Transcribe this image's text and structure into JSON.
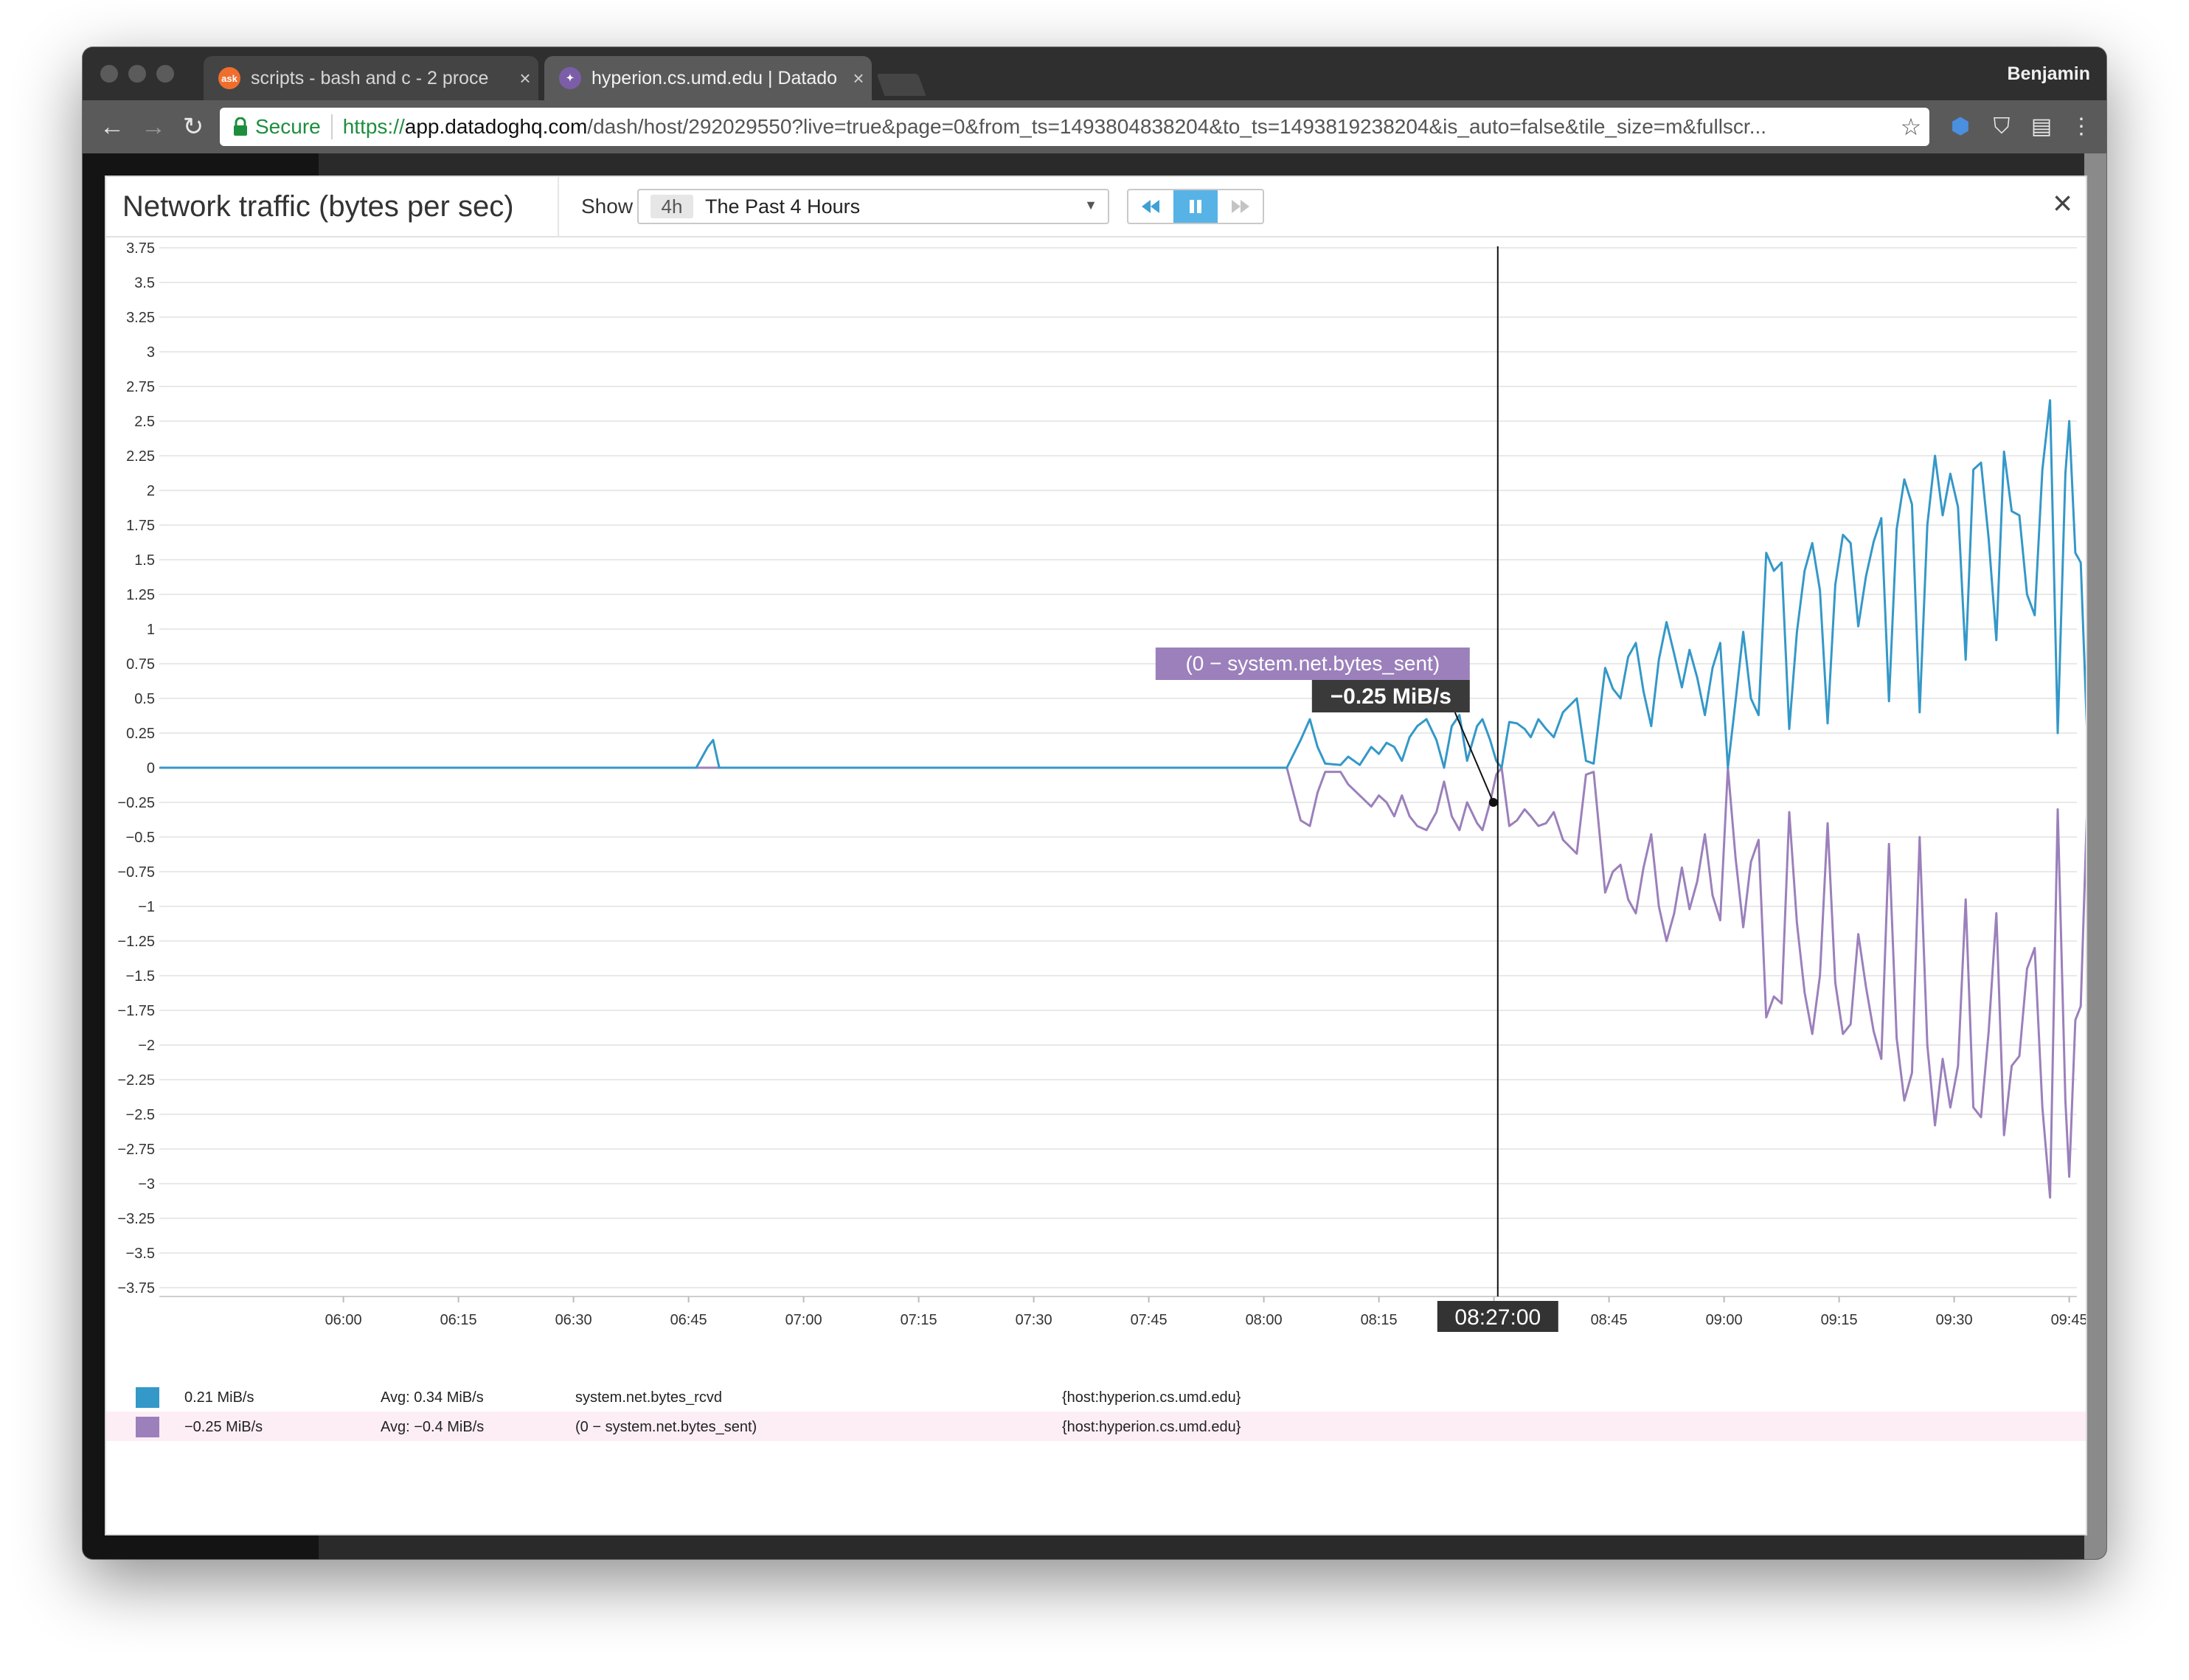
{
  "browser": {
    "tabs": [
      {
        "label": "scripts - bash and c - 2 proce",
        "favicon_text": "ask",
        "favicon_color": "#ef6e2e",
        "active": false
      },
      {
        "label": "hyperion.cs.umd.edu | Datado",
        "favicon_color": "#7b5ea7",
        "active": true
      }
    ],
    "profile_name": "Benjamin",
    "url_secure_label": "Secure",
    "url_scheme": "https://",
    "url_domain": "app.datadoghq.com",
    "url_path": "/dash/host/292029550?live=true&page=0&from_ts=1493804838204&to_ts=1493819238204&is_auto=false&tile_size=m&fullscr..."
  },
  "modal": {
    "title": "Network traffic (bytes per sec)",
    "show_label": "Show",
    "timeframe_abbr": "4h",
    "timeframe_label": "The Past 4 Hours",
    "close_label": "×"
  },
  "chart_data": {
    "type": "line",
    "title": "Network traffic (bytes per sec)",
    "ylim": [
      -3.75,
      3.75
    ],
    "yticks": [
      "3.75",
      "3.5",
      "3.25",
      "3",
      "2.75",
      "2.5",
      "2.25",
      "2",
      "1.75",
      "1.5",
      "1.25",
      "1",
      "0.75",
      "0.5",
      "0.25",
      "0",
      "−0.25",
      "−0.5",
      "−0.75",
      "−1",
      "−1.25",
      "−1.5",
      "−1.75",
      "−2",
      "−2.25",
      "−2.5",
      "−2.75",
      "−3",
      "−3.25",
      "−3.5",
      "−3.75"
    ],
    "xlim_minutes": [
      336,
      586
    ],
    "xticks": [
      {
        "label": "06:00",
        "t": 360
      },
      {
        "label": "06:15",
        "t": 375
      },
      {
        "label": "06:30",
        "t": 390
      },
      {
        "label": "06:45",
        "t": 405
      },
      {
        "label": "07:00",
        "t": 420
      },
      {
        "label": "07:15",
        "t": 435
      },
      {
        "label": "07:30",
        "t": 450
      },
      {
        "label": "07:45",
        "t": 465
      },
      {
        "label": "08:00",
        "t": 480
      },
      {
        "label": "08:15",
        "t": 495
      },
      {
        "label": "08:30",
        "t": 510
      },
      {
        "label": "08:45",
        "t": 525
      },
      {
        "label": "09:00",
        "t": 540
      },
      {
        "label": "09:15",
        "t": 555
      },
      {
        "label": "09:30",
        "t": 570
      },
      {
        "label": "09:45",
        "t": 585
      }
    ],
    "series": [
      {
        "name": "system.net.bytes_rcvd",
        "color": "#3498c8",
        "points": [
          [
            336,
            0
          ],
          [
            406,
            0
          ],
          [
            407.5,
            0.15
          ],
          [
            408.2,
            0.2
          ],
          [
            409,
            0
          ],
          [
            470,
            0
          ],
          [
            483,
            0
          ],
          [
            484.8,
            0.2
          ],
          [
            486,
            0.35
          ],
          [
            487,
            0.15
          ],
          [
            488,
            0.03
          ],
          [
            490,
            0.02
          ],
          [
            491,
            0.08
          ],
          [
            492.5,
            0.02
          ],
          [
            494,
            0.15
          ],
          [
            495,
            0.1
          ],
          [
            496,
            0.18
          ],
          [
            497,
            0.15
          ],
          [
            498,
            0.05
          ],
          [
            499,
            0.22
          ],
          [
            500,
            0.3
          ],
          [
            501.2,
            0.35
          ],
          [
            502.5,
            0.2
          ],
          [
            503.5,
            0
          ],
          [
            504.5,
            0.3
          ],
          [
            505.5,
            0.38
          ],
          [
            506.5,
            0.05
          ],
          [
            507.8,
            0.3
          ],
          [
            508.5,
            0.35
          ],
          [
            509.5,
            0.2
          ],
          [
            510.3,
            0.05
          ],
          [
            511,
            0
          ],
          [
            512,
            0.33
          ],
          [
            513,
            0.32
          ],
          [
            514,
            0.28
          ],
          [
            514.8,
            0.22
          ],
          [
            515.8,
            0.35
          ],
          [
            516.8,
            0.28
          ],
          [
            517.8,
            0.22
          ],
          [
            519,
            0.4
          ],
          [
            520.8,
            0.5
          ],
          [
            522,
            0.05
          ],
          [
            523,
            0.03
          ],
          [
            524.5,
            0.72
          ],
          [
            525.5,
            0.57
          ],
          [
            526.5,
            0.5
          ],
          [
            527.5,
            0.8
          ],
          [
            528.5,
            0.9
          ],
          [
            529.5,
            0.55
          ],
          [
            530.5,
            0.3
          ],
          [
            531.5,
            0.78
          ],
          [
            532.5,
            1.05
          ],
          [
            533.5,
            0.82
          ],
          [
            534.5,
            0.58
          ],
          [
            535.5,
            0.85
          ],
          [
            536.5,
            0.65
          ],
          [
            537.5,
            0.38
          ],
          [
            538.5,
            0.72
          ],
          [
            539.5,
            0.9
          ],
          [
            540.5,
            0
          ],
          [
            541.5,
            0.48
          ],
          [
            542.5,
            0.98
          ],
          [
            543.5,
            0.5
          ],
          [
            544.5,
            0.38
          ],
          [
            545.5,
            1.55
          ],
          [
            546.5,
            1.42
          ],
          [
            547.5,
            1.48
          ],
          [
            548.5,
            0.28
          ],
          [
            549.5,
            0.98
          ],
          [
            550.5,
            1.42
          ],
          [
            551.5,
            1.62
          ],
          [
            552.5,
            1.28
          ],
          [
            553.5,
            0.32
          ],
          [
            554.5,
            1.32
          ],
          [
            555.5,
            1.68
          ],
          [
            556.5,
            1.62
          ],
          [
            557.5,
            1.02
          ],
          [
            558.5,
            1.38
          ],
          [
            559.5,
            1.63
          ],
          [
            560.5,
            1.8
          ],
          [
            561.5,
            0.48
          ],
          [
            562.5,
            1.72
          ],
          [
            563.5,
            2.08
          ],
          [
            564.5,
            1.9
          ],
          [
            565.5,
            0.4
          ],
          [
            566.5,
            1.75
          ],
          [
            567.5,
            2.25
          ],
          [
            568.5,
            1.82
          ],
          [
            569.5,
            2.12
          ],
          [
            570.5,
            1.88
          ],
          [
            571.5,
            0.78
          ],
          [
            572.5,
            2.15
          ],
          [
            573.5,
            2.2
          ],
          [
            574.5,
            1.65
          ],
          [
            575.5,
            0.92
          ],
          [
            576.5,
            2.28
          ],
          [
            577.5,
            1.85
          ],
          [
            578.5,
            1.82
          ],
          [
            579.5,
            1.25
          ],
          [
            580.5,
            1.1
          ],
          [
            581.5,
            2.15
          ],
          [
            582.5,
            2.65
          ],
          [
            583.5,
            0.25
          ],
          [
            584.5,
            2.12
          ],
          [
            585,
            2.5
          ],
          [
            585.8,
            1.55
          ],
          [
            586.5,
            1.48
          ],
          [
            587.5,
            0
          ],
          [
            589,
            0
          ]
        ]
      },
      {
        "name": "(0 − system.net.bytes_sent)",
        "color": "#9b80bb",
        "points": [
          [
            336,
            0
          ],
          [
            470,
            0
          ],
          [
            483,
            0
          ],
          [
            484.8,
            -0.38
          ],
          [
            486,
            -0.42
          ],
          [
            487,
            -0.18
          ],
          [
            488,
            -0.03
          ],
          [
            490,
            -0.03
          ],
          [
            491,
            -0.12
          ],
          [
            492.5,
            -0.2
          ],
          [
            494,
            -0.28
          ],
          [
            495,
            -0.2
          ],
          [
            496,
            -0.25
          ],
          [
            497,
            -0.35
          ],
          [
            498,
            -0.2
          ],
          [
            499,
            -0.35
          ],
          [
            500,
            -0.42
          ],
          [
            501.2,
            -0.45
          ],
          [
            502.5,
            -0.32
          ],
          [
            503.5,
            -0.1
          ],
          [
            504.5,
            -0.35
          ],
          [
            505.5,
            -0.45
          ],
          [
            506.5,
            -0.25
          ],
          [
            507.8,
            -0.4
          ],
          [
            508.5,
            -0.45
          ],
          [
            509.5,
            -0.25
          ],
          [
            510.3,
            -0.05
          ],
          [
            511,
            0
          ],
          [
            512,
            -0.42
          ],
          [
            513,
            -0.38
          ],
          [
            514,
            -0.3
          ],
          [
            514.8,
            -0.35
          ],
          [
            515.8,
            -0.42
          ],
          [
            516.8,
            -0.4
          ],
          [
            517.8,
            -0.32
          ],
          [
            519,
            -0.52
          ],
          [
            520.8,
            -0.62
          ],
          [
            522,
            -0.05
          ],
          [
            523,
            -0.03
          ],
          [
            524.5,
            -0.9
          ],
          [
            525.5,
            -0.75
          ],
          [
            526.5,
            -0.7
          ],
          [
            527.5,
            -0.95
          ],
          [
            528.5,
            -1.05
          ],
          [
            529.5,
            -0.72
          ],
          [
            530.5,
            -0.48
          ],
          [
            531.5,
            -1.0
          ],
          [
            532.5,
            -1.25
          ],
          [
            533.5,
            -1.05
          ],
          [
            534.5,
            -0.72
          ],
          [
            535.5,
            -1.02
          ],
          [
            536.5,
            -0.82
          ],
          [
            537.5,
            -0.48
          ],
          [
            538.5,
            -0.92
          ],
          [
            539.5,
            -1.1
          ],
          [
            540.5,
            0
          ],
          [
            541.5,
            -0.65
          ],
          [
            542.5,
            -1.15
          ],
          [
            543.5,
            -0.68
          ],
          [
            544.5,
            -0.52
          ],
          [
            545.5,
            -1.8
          ],
          [
            546.5,
            -1.65
          ],
          [
            547.5,
            -1.7
          ],
          [
            548.5,
            -0.32
          ],
          [
            549.5,
            -1.12
          ],
          [
            550.5,
            -1.62
          ],
          [
            551.5,
            -1.92
          ],
          [
            552.5,
            -1.5
          ],
          [
            553.5,
            -0.4
          ],
          [
            554.5,
            -1.55
          ],
          [
            555.5,
            -1.92
          ],
          [
            556.5,
            -1.85
          ],
          [
            557.5,
            -1.2
          ],
          [
            558.5,
            -1.58
          ],
          [
            559.5,
            -1.9
          ],
          [
            560.5,
            -2.1
          ],
          [
            561.5,
            -0.55
          ],
          [
            562.5,
            -1.95
          ],
          [
            563.5,
            -2.4
          ],
          [
            564.5,
            -2.2
          ],
          [
            565.5,
            -0.5
          ],
          [
            566.5,
            -2.0
          ],
          [
            567.5,
            -2.58
          ],
          [
            568.5,
            -2.1
          ],
          [
            569.5,
            -2.45
          ],
          [
            570.5,
            -2.15
          ],
          [
            571.5,
            -0.95
          ],
          [
            572.5,
            -2.45
          ],
          [
            573.5,
            -2.52
          ],
          [
            574.5,
            -1.9
          ],
          [
            575.5,
            -1.05
          ],
          [
            576.5,
            -2.65
          ],
          [
            577.5,
            -2.15
          ],
          [
            578.5,
            -2.08
          ],
          [
            579.5,
            -1.45
          ],
          [
            580.5,
            -1.3
          ],
          [
            581.5,
            -2.45
          ],
          [
            582.5,
            -3.1
          ],
          [
            583.5,
            -0.3
          ],
          [
            584.5,
            -2.4
          ],
          [
            585,
            -2.95
          ],
          [
            585.8,
            -1.82
          ],
          [
            586.5,
            -1.72
          ],
          [
            587.5,
            0
          ],
          [
            589,
            0
          ]
        ]
      }
    ],
    "hover": {
      "t": 510.5,
      "value": -0.25,
      "time_label": "08:27:00",
      "series_label": "(0 − system.net.bytes_sent)",
      "value_label": "−0.25 MiB/s"
    }
  },
  "legend": [
    {
      "swatch_color": "#3498c8",
      "current": "0.21 MiB/s",
      "avg": "Avg: 0.34 MiB/s",
      "metric": "system.net.bytes_rcvd",
      "host": "{host:hyperion.cs.umd.edu}",
      "highlight": false
    },
    {
      "swatch_color": "#9b80bb",
      "current": "−0.25 MiB/s",
      "avg": "Avg: −0.4 MiB/s",
      "metric": "(0 − system.net.bytes_sent)",
      "host": "{host:hyperion.cs.umd.edu}",
      "highlight": true
    }
  ]
}
